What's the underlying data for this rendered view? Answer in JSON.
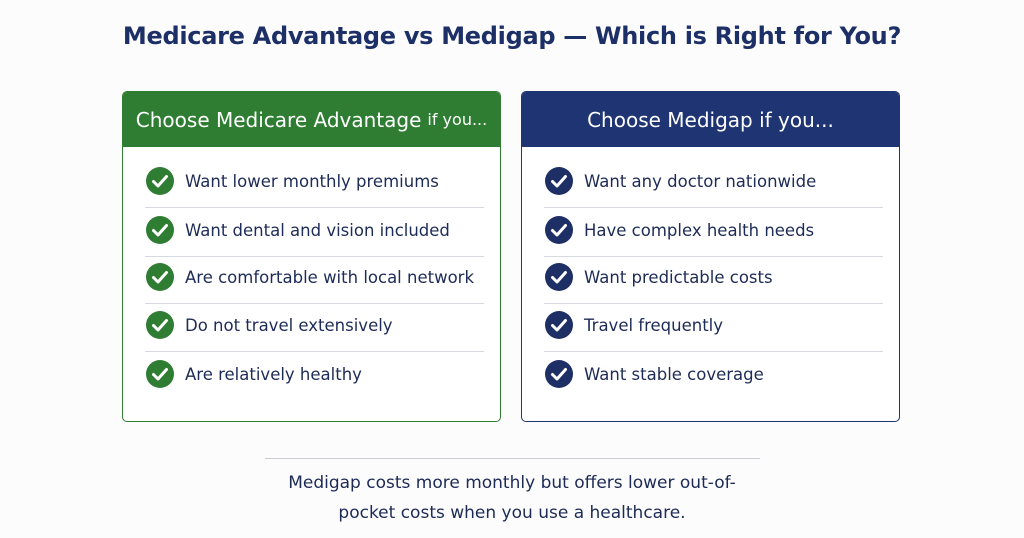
{
  "header": {
    "title": "Medicare Advantage vs Medigap — Which is Right for You?"
  },
  "cards": [
    {
      "title": "Choose Medicare Advantage",
      "title_suffix": "if you...",
      "items": [
        "Want lower monthly premiums",
        "Want dental and vision included",
        "Are comfortable with local network",
        "Do not travel extensively",
        "Are relatively healthy"
      ]
    },
    {
      "title": "Choose Medigap if you...",
      "items": [
        "Want any doctor nationwide",
        "Have complex health needs",
        "Want predictable costs",
        "Travel frequently",
        "Want stable coverage"
      ]
    }
  ],
  "note": {
    "lines": [
      "Medigap costs more monthly but offers lower out-of-",
      "pocket costs when you use a healthcare."
    ]
  }
}
